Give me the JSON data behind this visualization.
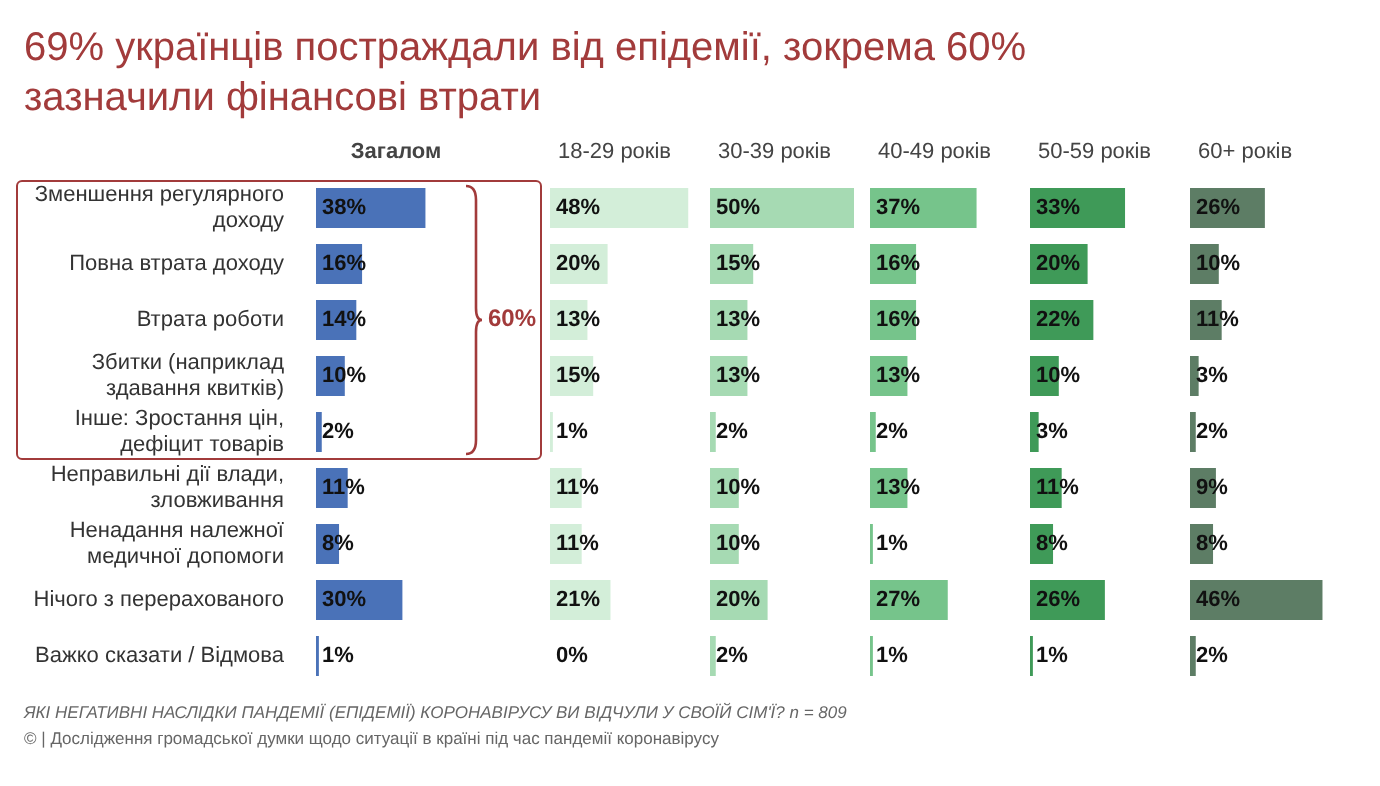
{
  "chart_data": [
    {
      "type": "bar",
      "orientation": "horizontal",
      "title": "69% українців постраждали від епідемії, зокрема 60% зазначили фінансові втрати",
      "subtitle": "Загалом",
      "tick_labels": "y",
      "categories": [
        "Зменшення регулярного доходу",
        "Повна втрата доходу",
        "Втрата роботи",
        "Збитки (наприклад здавання квитків)",
        "Інше: Зростання цін, дефіцит товарів",
        "Неправильні дії влади, зловживання",
        "Ненадання належної медичної допомоги",
        "Нічого з перерахованого",
        "Важко сказати / Відмова"
      ],
      "series": [
        {
          "color": "#4a72b8",
          "values": [
            38,
            16,
            14,
            10,
            2,
            11,
            8,
            30,
            1
          ],
          "value_labels": [
            "38%",
            "16%",
            "14%",
            "10%",
            "2%",
            "11%",
            "8%",
            "30%",
            "1%"
          ]
        }
      ],
      "annotations": [
        "60%",
        "ЯКІ НЕГАТИВНІ НАСЛІДКИ ПАНДЕМІЇ (ЕПІДЕМІЇ) КОРОНАВІРУСУ ВИ ВІДЧУЛИ У СВОЇЙ СІМ'Ї? n = 809",
        "© | Дослідження громадської думки щодо ситуації в країні під час пандемії коронавірусу"
      ]
    },
    {
      "type": "bar",
      "orientation": "horizontal",
      "subtitle": "18-29 років",
      "tick_labels": false,
      "series": [
        {
          "color": "#d3eed9",
          "values": [
            48,
            20,
            13,
            15,
            1,
            11,
            11,
            21,
            0
          ],
          "value_labels": [
            "48%",
            "20%",
            "13%",
            "15%",
            "1%",
            "11%",
            "11%",
            "21%",
            "0%"
          ]
        }
      ]
    },
    {
      "type": "bar",
      "orientation": "horizontal",
      "subtitle": "30-39 років",
      "tick_labels": false,
      "series": [
        {
          "color": "#a6dab3",
          "values": [
            50,
            15,
            13,
            13,
            2,
            10,
            10,
            20,
            2
          ],
          "value_labels": [
            "50%",
            "15%",
            "13%",
            "13%",
            "2%",
            "10%",
            "10%",
            "20%",
            "2%"
          ]
        }
      ]
    },
    {
      "type": "bar",
      "orientation": "horizontal",
      "subtitle": "40-49 років",
      "tick_labels": false,
      "series": [
        {
          "color": "#76c48b",
          "values": [
            37,
            16,
            16,
            13,
            2,
            13,
            1,
            27,
            1
          ],
          "value_labels": [
            "37%",
            "16%",
            "16%",
            "13%",
            "2%",
            "13%",
            "1%",
            "27%",
            "1%"
          ]
        }
      ]
    },
    {
      "type": "bar",
      "orientation": "horizontal",
      "subtitle": "50-59 років",
      "tick_labels": false,
      "series": [
        {
          "color": "#3f9a58",
          "values": [
            33,
            20,
            22,
            10,
            3,
            11,
            8,
            26,
            1
          ],
          "value_labels": [
            "33%",
            "20%",
            "22%",
            "10%",
            "3%",
            "11%",
            "8%",
            "26%",
            "1%"
          ]
        }
      ]
    },
    {
      "type": "bar",
      "orientation": "horizontal",
      "subtitle": "60+ років",
      "tick_labels": false,
      "series": [
        {
          "color": "#5d7d65",
          "values": [
            26,
            10,
            11,
            3,
            2,
            9,
            8,
            46,
            2
          ],
          "value_labels": [
            "26%",
            "10%",
            "11%",
            "3%",
            "2%",
            "9%",
            "8%",
            "46%",
            "2%"
          ]
        }
      ]
    }
  ]
}
